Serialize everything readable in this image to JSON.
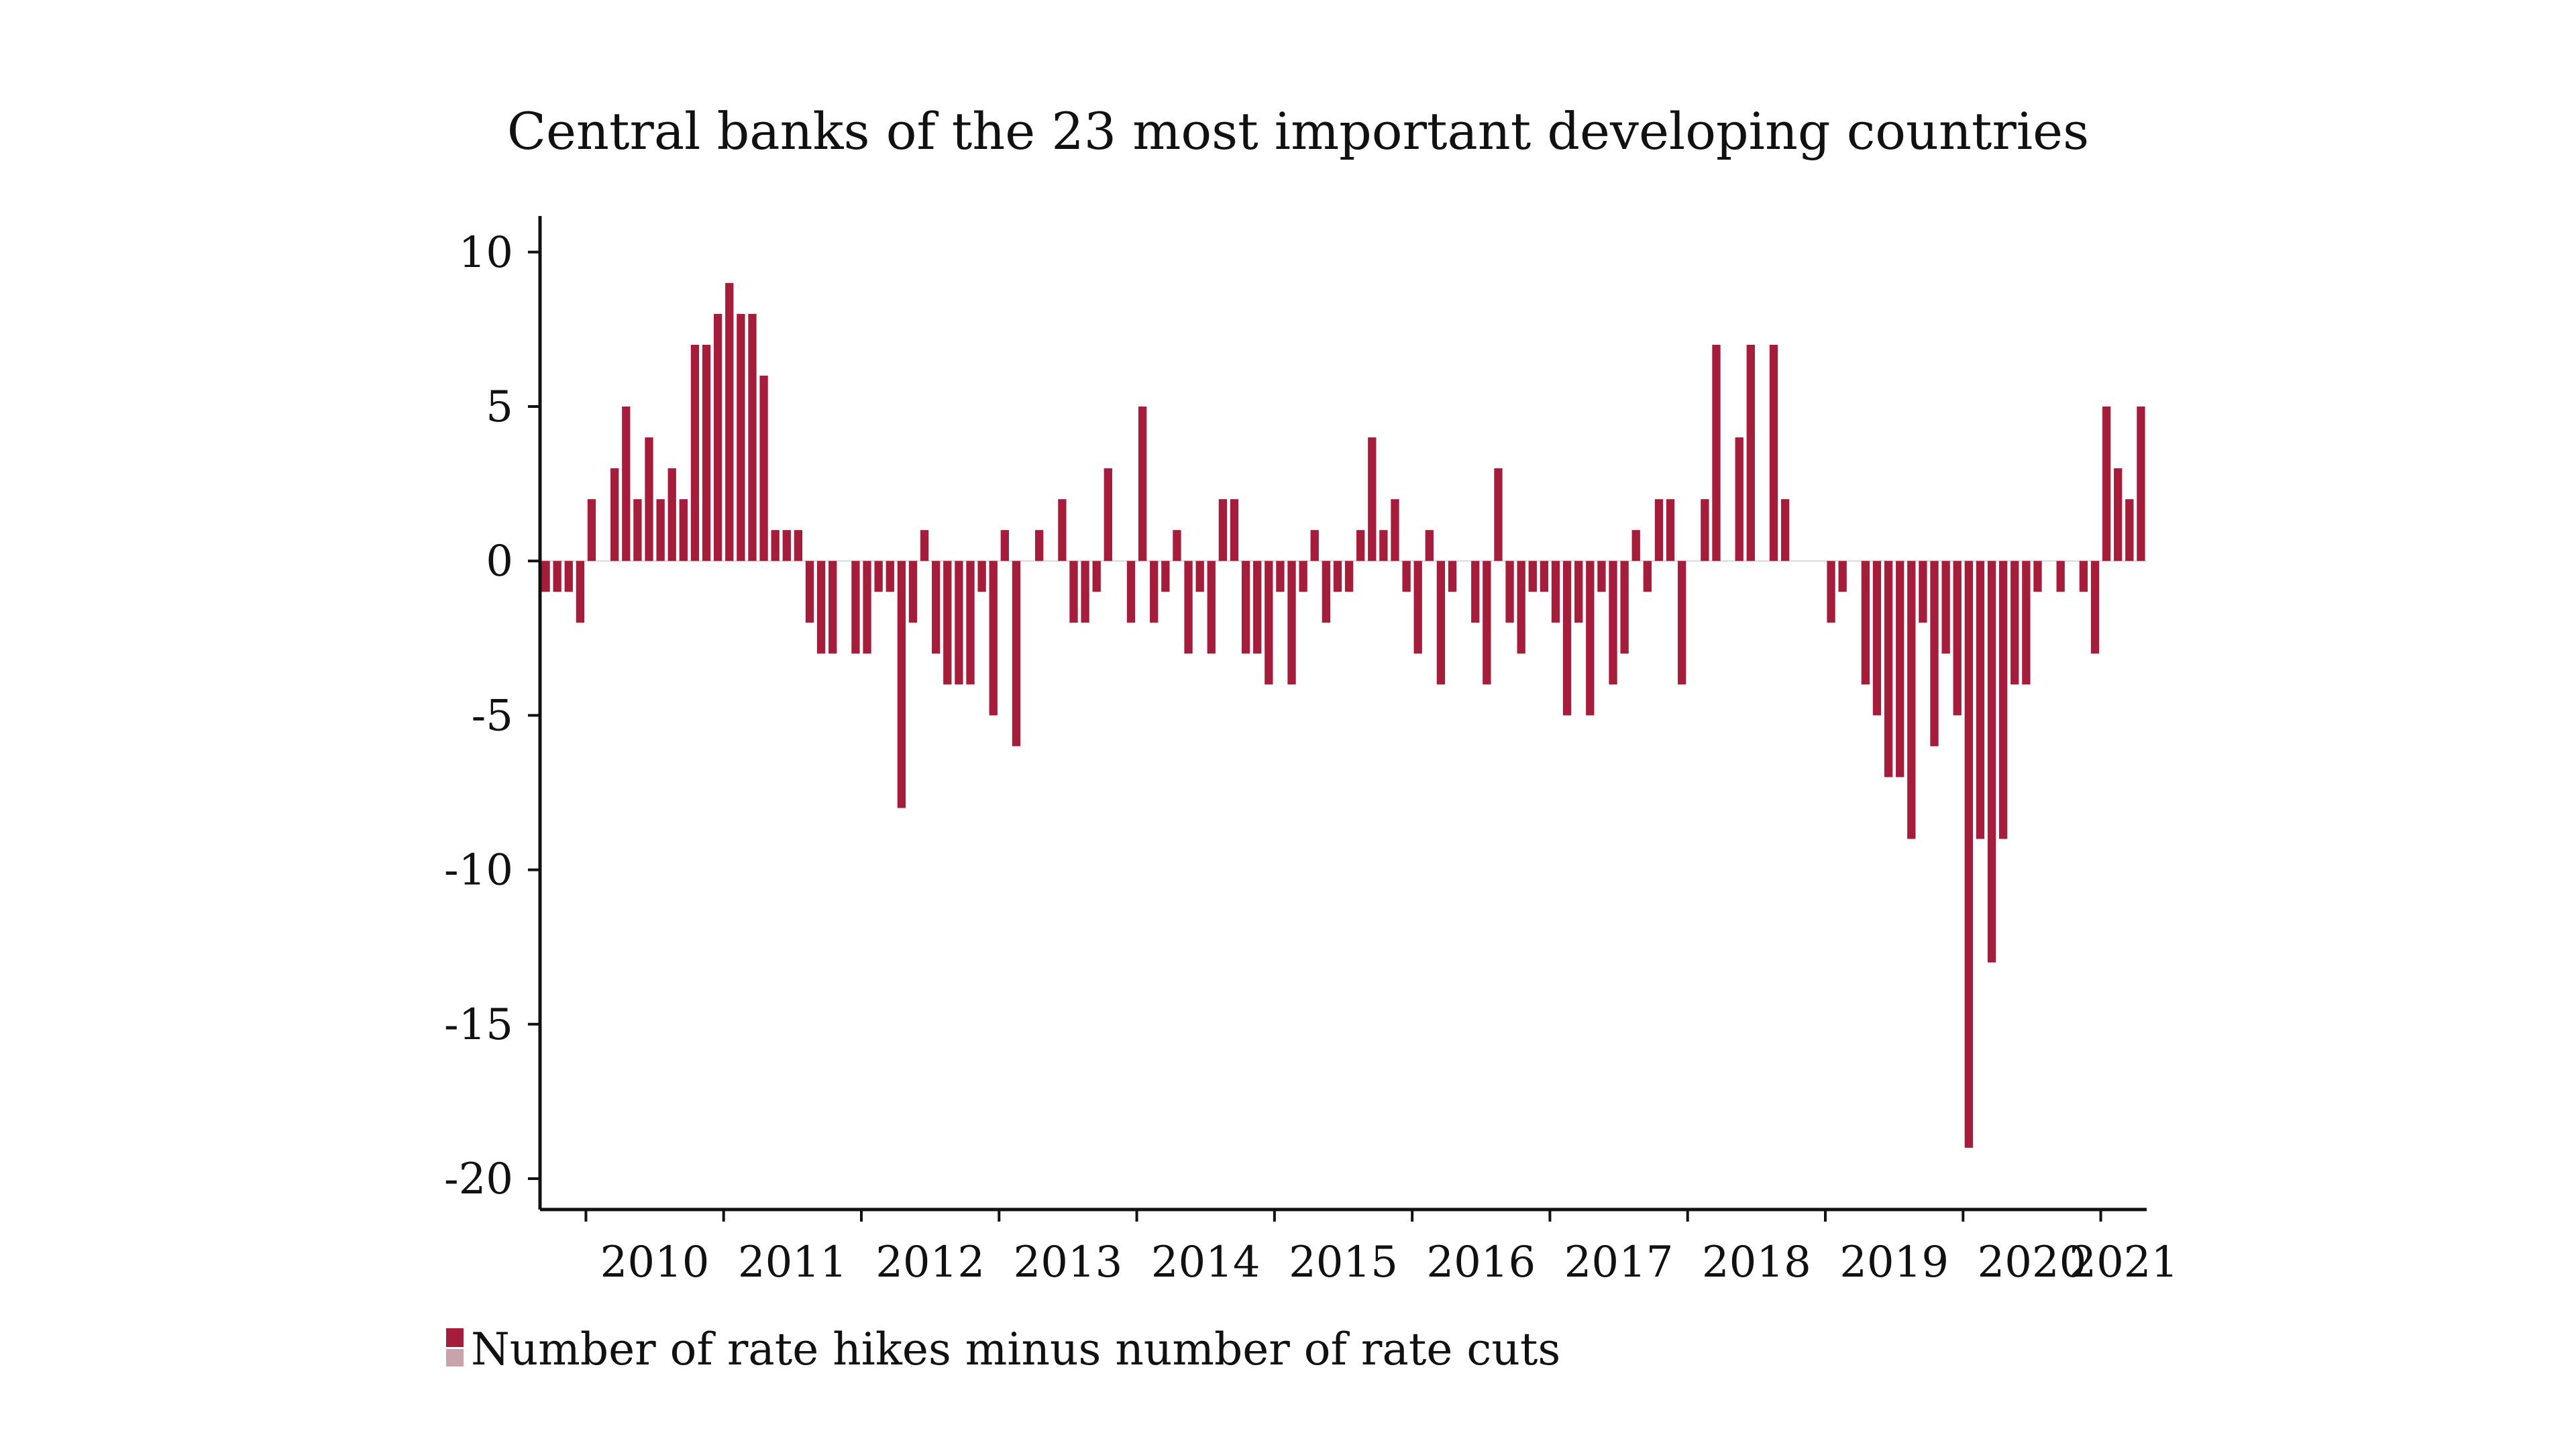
{
  "chart_data": {
    "type": "bar",
    "title": "Central banks of the 23 most important developing countries",
    "xlabel": "",
    "ylabel": "",
    "ylim": [
      -21,
      10.3
    ],
    "yticks": [
      10,
      5,
      0,
      -5,
      -10,
      -15,
      -20
    ],
    "ytick_labels": [
      "10",
      "5",
      "0",
      "-5",
      "-10",
      "-15",
      "-20"
    ],
    "x_start": "2009-09",
    "x_end": "2021-04",
    "xtick_labels": [
      "2010",
      "2011",
      "2012",
      "2013",
      "2014",
      "2015",
      "2016",
      "2017",
      "2018",
      "2019",
      "2020",
      "2021"
    ],
    "grid": false,
    "legend_position": "bottom-left",
    "bar_color": "#a51d3a",
    "series": [
      {
        "name": "Number of rate hikes minus number of rate cuts",
        "values": [
          -1,
          -1,
          -1,
          -2,
          2,
          0,
          3,
          5,
          2,
          4,
          2,
          3,
          2,
          7,
          7,
          8,
          9,
          8,
          8,
          6,
          1,
          1,
          1,
          -2,
          -3,
          -3,
          0,
          -3,
          -3,
          -1,
          -1,
          -8,
          -2,
          1,
          -3,
          -4,
          -4,
          -4,
          -1,
          -5,
          1,
          -6,
          0,
          1,
          0,
          2,
          -2,
          -2,
          -1,
          3,
          0,
          -2,
          5,
          -2,
          -1,
          1,
          -3,
          -1,
          -3,
          2,
          2,
          -3,
          -3,
          -4,
          -1,
          -4,
          -1,
          1,
          -2,
          -1,
          -1,
          1,
          4,
          1,
          2,
          -1,
          -3,
          1,
          -4,
          -1,
          0,
          -2,
          -4,
          3,
          -2,
          -3,
          -1,
          -1,
          -2,
          -5,
          -2,
          -5,
          -1,
          -4,
          -3,
          1,
          -1,
          2,
          2,
          -4,
          0,
          2,
          7,
          0,
          4,
          7,
          0,
          7,
          2,
          0,
          0,
          0,
          -2,
          -1,
          0,
          -4,
          -5,
          -7,
          -7,
          -9,
          -2,
          -6,
          -3,
          -5,
          -19,
          -9,
          -13,
          -9,
          -4,
          -4,
          -1,
          0,
          -1,
          0,
          -1,
          -3,
          5,
          3,
          2,
          5
        ]
      }
    ]
  }
}
